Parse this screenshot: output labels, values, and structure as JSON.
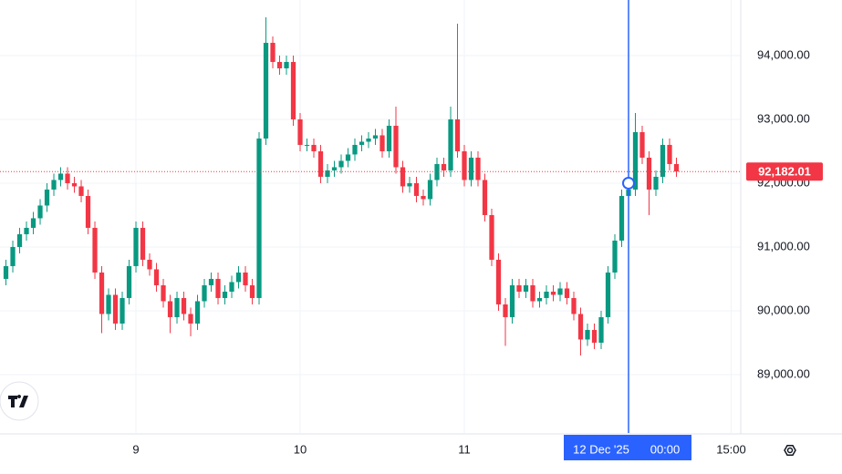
{
  "chart_data": {
    "type": "candlestick",
    "x": [
      -19,
      -18,
      -17,
      -16,
      -15,
      -14,
      -13,
      -12,
      -11,
      -10,
      -9,
      -8,
      -7,
      -6,
      -5,
      -4,
      -3,
      -2,
      -1,
      0,
      1,
      2,
      3,
      4,
      5,
      6,
      7,
      8,
      9,
      10,
      11,
      12,
      13,
      14,
      15,
      16,
      17,
      18,
      19,
      20,
      21,
      22,
      23,
      24,
      25,
      26,
      27,
      28,
      29,
      30,
      31,
      32,
      33,
      34,
      35,
      36,
      37,
      38,
      39,
      40,
      41,
      42,
      43,
      44,
      45,
      46,
      47,
      48,
      49,
      50,
      51,
      52,
      53,
      54,
      55,
      56,
      57,
      58,
      59,
      60,
      61,
      62,
      63,
      64,
      65,
      66,
      67,
      68,
      69,
      70,
      71,
      72,
      73,
      74,
      75,
      76,
      77,
      78,
      79
    ],
    "open": [
      90500,
      90700,
      91000,
      91200,
      91300,
      91450,
      91650,
      91900,
      92050,
      92150,
      92000,
      91950,
      91800,
      91300,
      90600,
      89950,
      90250,
      89800,
      90200,
      90700,
      91300,
      90800,
      90650,
      90400,
      90150,
      89900,
      90200,
      89950,
      89800,
      90150,
      90400,
      90500,
      90200,
      90300,
      90450,
      90600,
      90400,
      90200,
      92700,
      94200,
      93900,
      93800,
      93900,
      93000,
      92600,
      92600,
      92500,
      92100,
      92200,
      92250,
      92350,
      92450,
      92600,
      92650,
      92700,
      92750,
      92500,
      92900,
      92250,
      91950,
      92000,
      91800,
      91750,
      92050,
      92300,
      92200,
      93000,
      92500,
      92050,
      92400,
      92050,
      91500,
      90800,
      90100,
      89900,
      90400,
      90300,
      90400,
      90150,
      90200,
      90300,
      90250,
      90350,
      90200,
      89950,
      89550,
      89700,
      89500,
      89900,
      90600,
      91100,
      91800,
      91900,
      92800,
      92400,
      91900,
      92100,
      92600,
      92300
    ],
    "high": [
      90800,
      91100,
      91300,
      91400,
      91550,
      91750,
      92000,
      92150,
      92250,
      92250,
      92100,
      92050,
      91900,
      91400,
      90700,
      90350,
      90350,
      90300,
      90800,
      91400,
      91400,
      90900,
      90750,
      90500,
      90250,
      90300,
      90300,
      90050,
      90250,
      90500,
      90600,
      90600,
      90400,
      90550,
      90700,
      90700,
      90500,
      92800,
      94600,
      94300,
      94000,
      94000,
      94000,
      93100,
      92700,
      92700,
      92600,
      92300,
      92350,
      92450,
      92550,
      92700,
      92750,
      92800,
      92850,
      92850,
      93000,
      93200,
      92350,
      92100,
      92100,
      91900,
      92150,
      92400,
      92400,
      93200,
      94500,
      92600,
      92500,
      92500,
      92150,
      91600,
      90900,
      90200,
      90500,
      90500,
      90500,
      90500,
      90300,
      90400,
      90400,
      90450,
      90450,
      90300,
      90050,
      89800,
      89800,
      90000,
      90700,
      91200,
      91900,
      92000,
      93100,
      92900,
      92500,
      92200,
      92700,
      92700,
      92400
    ],
    "low": [
      90400,
      90600,
      90900,
      91100,
      91200,
      91350,
      91550,
      91800,
      91950,
      91900,
      91850,
      91700,
      91200,
      90500,
      89650,
      89850,
      89700,
      89700,
      90100,
      90600,
      90700,
      90550,
      90300,
      90050,
      89650,
      89800,
      89850,
      89600,
      89700,
      90050,
      90300,
      90100,
      90100,
      90200,
      90350,
      90300,
      90100,
      90100,
      92600,
      93800,
      93700,
      93700,
      92900,
      92500,
      92500,
      92400,
      92000,
      92000,
      92100,
      92150,
      92250,
      92350,
      92500,
      92550,
      92600,
      92400,
      92400,
      92150,
      91850,
      91850,
      91700,
      91650,
      91650,
      91950,
      92100,
      92100,
      92400,
      91950,
      91950,
      91950,
      91400,
      90700,
      90000,
      89450,
      89800,
      90200,
      90200,
      90050,
      90050,
      90100,
      90150,
      90150,
      90100,
      89850,
      89300,
      89450,
      89400,
      89400,
      89800,
      90500,
      91000,
      91700,
      91800,
      92300,
      91500,
      91800,
      92000,
      92200,
      92100
    ],
    "close": [
      90700,
      91000,
      91200,
      91300,
      91450,
      91650,
      91900,
      92050,
      92150,
      92000,
      91950,
      91800,
      91300,
      90600,
      89950,
      90250,
      89800,
      90200,
      90700,
      91300,
      90800,
      90650,
      90400,
      90150,
      89900,
      90200,
      89950,
      89800,
      90150,
      90400,
      90500,
      90200,
      90300,
      90450,
      90600,
      90400,
      90200,
      92700,
      94200,
      93900,
      93800,
      93900,
      93000,
      92600,
      92600,
      92500,
      92100,
      92200,
      92250,
      92350,
      92450,
      92600,
      92650,
      92700,
      92750,
      92500,
      92900,
      92250,
      91950,
      92000,
      91800,
      91750,
      92050,
      92300,
      92200,
      93000,
      92500,
      92050,
      92400,
      92050,
      91500,
      90800,
      90100,
      89900,
      90400,
      90300,
      90400,
      90150,
      90200,
      90300,
      90250,
      90350,
      90200,
      89950,
      89550,
      89700,
      89500,
      89900,
      90600,
      91100,
      91800,
      91900,
      92800,
      92400,
      91900,
      92100,
      92600,
      92300,
      92182.01
    ],
    "up_color": "#089981",
    "down_color": "#f23645",
    "last_price_label": "92,182.01",
    "xlim": [
      -19.87,
      88.4
    ],
    "ylim": [
      88085,
      94871
    ],
    "xticks": [
      {
        "value": 0,
        "label": "9"
      },
      {
        "value": 24,
        "label": "10"
      },
      {
        "value": 48,
        "label": "11"
      },
      {
        "value": 87,
        "label": "15:00"
      }
    ],
    "yticks": [
      {
        "value": 89000,
        "label": "89,000.00"
      },
      {
        "value": 90000,
        "label": "90,000.00"
      },
      {
        "value": 91000,
        "label": "91,000.00"
      },
      {
        "value": 92000,
        "label": "92,000.00"
      },
      {
        "value": 93000,
        "label": "93,000.00"
      },
      {
        "value": 94000,
        "label": "94,000.00"
      }
    ],
    "grid": true,
    "crosshair": {
      "x": 72,
      "y": 92000,
      "date_label": "12 Dec '25",
      "time_label": "00:00",
      "color": "#2962ff"
    }
  }
}
